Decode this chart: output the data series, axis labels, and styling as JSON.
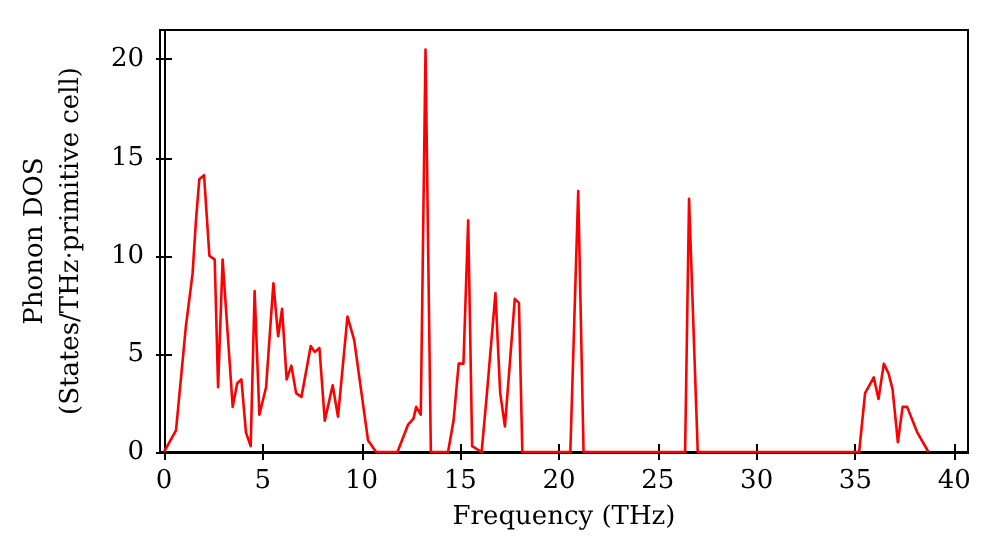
{
  "chart_data": {
    "type": "line",
    "xlabel": "Frequency (THz)",
    "ylabel": "Phonon DOS\n(States/THz·primitive cell)",
    "x": [
      0,
      0.61,
      1.11,
      1.45,
      1.62,
      1.79,
      2.03,
      2.3,
      2.57,
      2.74,
      2.97,
      3.48,
      3.71,
      3.92,
      4.15,
      4.39,
      4.59,
      4.83,
      5.17,
      5.54,
      5.78,
      5.98,
      6.21,
      6.45,
      6.69,
      6.96,
      7.43,
      7.63,
      7.87,
      8.14,
      8.54,
      8.81,
      9.29,
      9.63,
      10.0,
      10.33,
      10.74,
      11.82,
      12.36,
      12.63,
      12.77,
      13.0,
      13.24,
      13.51,
      14.38,
      14.66,
      14.92,
      15.16,
      15.4,
      15.6,
      16.08,
      16.35,
      16.78,
      17.02,
      17.26,
      17.76,
      17.97,
      18.14,
      20.57,
      20.97,
      21.24,
      26.38,
      26.58,
      27.02,
      35.19,
      35.49,
      35.93,
      36.17,
      36.44,
      36.68,
      36.88,
      37.15,
      37.39,
      37.62,
      38.13,
      38.7
    ],
    "series": [
      {
        "color": "#ff0000",
        "values": [
          0,
          1.1,
          6.4,
          9.1,
          11.8,
          13.9,
          14.1,
          10.0,
          9.8,
          3.3,
          9.8,
          2.3,
          3.5,
          3.7,
          1.0,
          0.3,
          8.2,
          1.9,
          3.3,
          8.6,
          5.9,
          7.3,
          3.7,
          4.4,
          3.0,
          2.8,
          5.4,
          5.1,
          5.3,
          1.6,
          3.4,
          1.8,
          6.9,
          5.7,
          3.0,
          0.6,
          0,
          0,
          1.4,
          1.7,
          2.3,
          1.9,
          20.5,
          0,
          0,
          1.6,
          4.5,
          4.5,
          11.8,
          0.3,
          0,
          3.0,
          8.1,
          3.0,
          1.3,
          7.8,
          7.6,
          0,
          0,
          13.3,
          0,
          0,
          12.9,
          0,
          0,
          3.0,
          3.8,
          2.7,
          4.5,
          4.0,
          3.2,
          0.5,
          2.3,
          2.3,
          1.0,
          0
        ]
      }
    ],
    "xlim": [
      -0.2,
      40.7
    ],
    "ylim": [
      0,
      21.5
    ],
    "xticks": [
      0,
      5,
      10,
      15,
      20,
      25,
      30,
      35,
      40
    ],
    "yticks": [
      0,
      5,
      10,
      15,
      20
    ],
    "grid": false,
    "marker": "none",
    "line_style": "solid"
  }
}
